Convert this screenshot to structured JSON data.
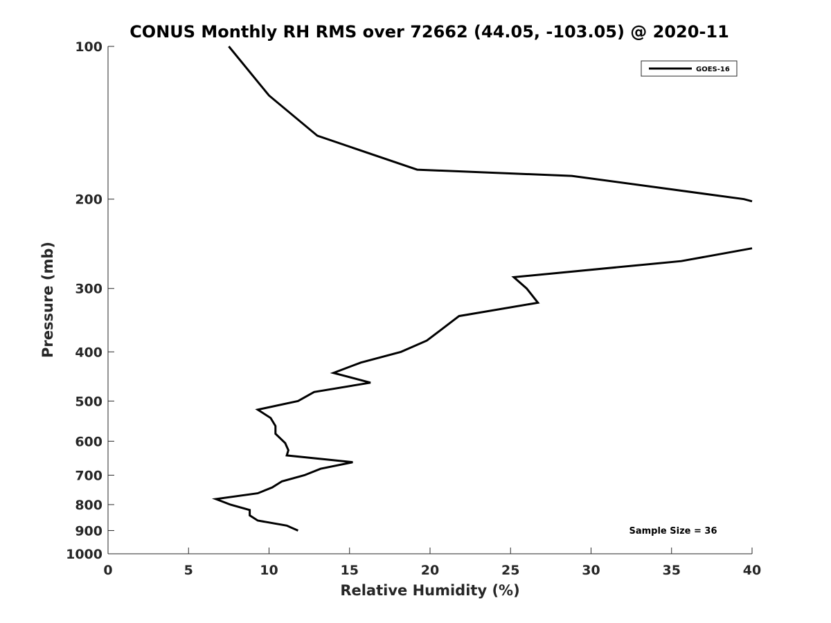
{
  "chart_data": {
    "type": "line",
    "title": "CONUS Monthly RH RMS over 72662 (44.05, -103.05) @ 2020-11",
    "xlabel": "Relative Humidity (%)",
    "ylabel": "Pressure (mb)",
    "xlim": [
      0,
      40
    ],
    "ylim": [
      1000,
      100
    ],
    "yscale": "log",
    "y_reversed": true,
    "grid": false,
    "legend_position": "top-right",
    "x_ticks": [
      0,
      5,
      10,
      15,
      20,
      25,
      30,
      35,
      40
    ],
    "y_ticks": [
      100,
      200,
      300,
      400,
      500,
      600,
      700,
      800,
      900,
      1000
    ],
    "annotation": "Sample Size = 36",
    "series": [
      {
        "name": "GOES-16",
        "color": "#000000",
        "segments": [
          [
            {
              "x": 7.5,
              "y": 100
            },
            {
              "x": 10.0,
              "y": 125
            },
            {
              "x": 13.0,
              "y": 150
            },
            {
              "x": 19.2,
              "y": 175
            },
            {
              "x": 28.8,
              "y": 180
            },
            {
              "x": 39.5,
              "y": 200
            },
            {
              "x": 40.0,
              "y": 202
            }
          ],
          [
            {
              "x": 40.0,
              "y": 250
            },
            {
              "x": 35.6,
              "y": 265
            },
            {
              "x": 25.2,
              "y": 285
            },
            {
              "x": 26.0,
              "y": 300
            },
            {
              "x": 26.7,
              "y": 320
            },
            {
              "x": 21.8,
              "y": 340
            },
            {
              "x": 19.8,
              "y": 380
            },
            {
              "x": 18.2,
              "y": 400
            },
            {
              "x": 15.7,
              "y": 420
            },
            {
              "x": 14.0,
              "y": 440
            },
            {
              "x": 16.3,
              "y": 460
            },
            {
              "x": 12.8,
              "y": 480
            },
            {
              "x": 11.8,
              "y": 500
            },
            {
              "x": 9.3,
              "y": 520
            },
            {
              "x": 10.1,
              "y": 540
            },
            {
              "x": 10.4,
              "y": 560
            },
            {
              "x": 10.4,
              "y": 580
            },
            {
              "x": 11.0,
              "y": 605
            },
            {
              "x": 11.2,
              "y": 625
            },
            {
              "x": 11.1,
              "y": 640
            },
            {
              "x": 15.2,
              "y": 660
            },
            {
              "x": 13.2,
              "y": 680
            },
            {
              "x": 12.2,
              "y": 700
            },
            {
              "x": 10.8,
              "y": 720
            },
            {
              "x": 10.2,
              "y": 740
            },
            {
              "x": 9.3,
              "y": 760
            },
            {
              "x": 6.7,
              "y": 780
            },
            {
              "x": 7.6,
              "y": 800
            },
            {
              "x": 8.8,
              "y": 820
            },
            {
              "x": 8.8,
              "y": 840
            },
            {
              "x": 9.3,
              "y": 860
            },
            {
              "x": 11.1,
              "y": 880
            },
            {
              "x": 11.8,
              "y": 900
            }
          ]
        ]
      }
    ]
  }
}
